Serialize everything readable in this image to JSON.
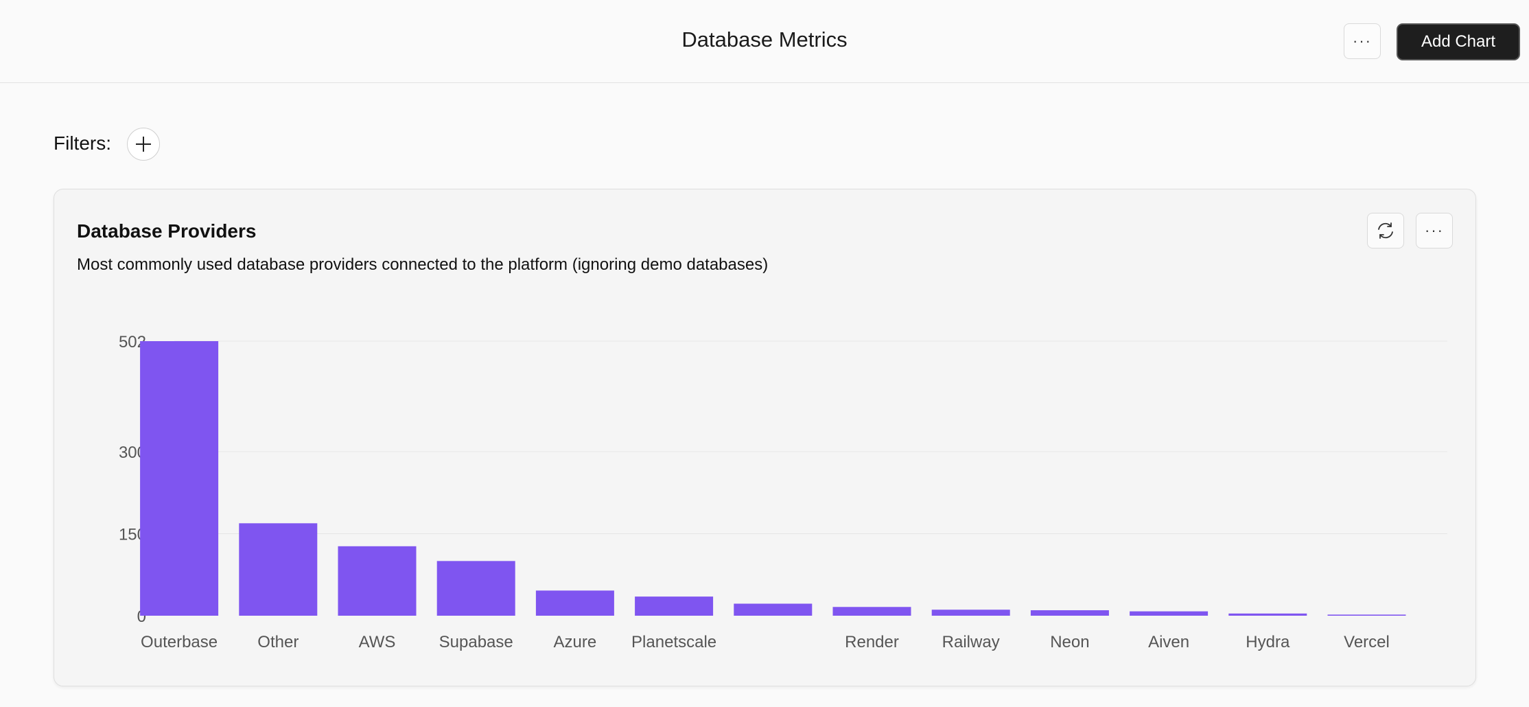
{
  "header": {
    "title": "Database Metrics",
    "more_label": "···",
    "add_chart_label": "Add Chart"
  },
  "filters": {
    "label": "Filters:"
  },
  "card": {
    "title": "Database Providers",
    "subtitle": "Most commonly used database providers connected to the platform (ignoring demo databases)",
    "more_label": "···"
  },
  "icons": {
    "add_filter": "plus-icon",
    "refresh": "refresh-icon"
  },
  "colors": {
    "bar": "#7f55f0",
    "primary_button": "#1e1e1e"
  },
  "chart_data": {
    "type": "bar",
    "categories": [
      "Outerbase",
      "Other",
      "AWS",
      "Supabase",
      "Azure",
      "Planetscale",
      "",
      "Render",
      "Railway",
      "Neon",
      "Aiven",
      "Hydra",
      "Vercel"
    ],
    "values": [
      502,
      169,
      127,
      100,
      46,
      35,
      22,
      16,
      11,
      10,
      8,
      4,
      2
    ],
    "yticks": [
      0,
      150,
      300,
      502
    ],
    "ylim": [
      0,
      502
    ],
    "grid": true,
    "title": "Database Providers",
    "xlabel": "",
    "ylabel": ""
  }
}
